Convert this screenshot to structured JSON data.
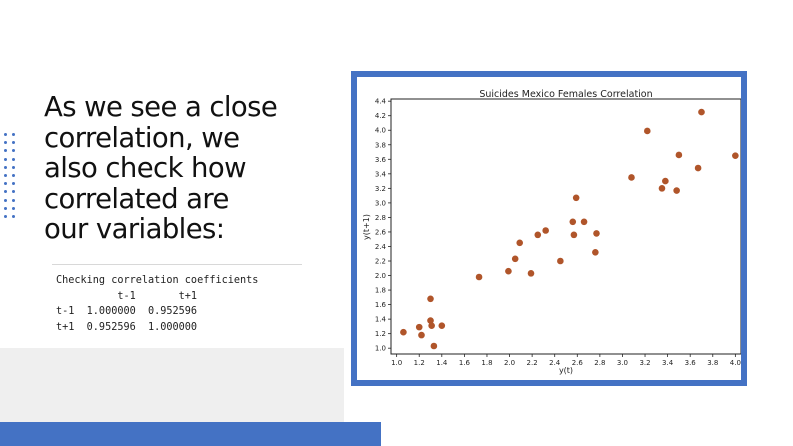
{
  "text": {
    "heading_lines": [
      "As we see a close",
      "correlation, we",
      "also check how",
      "correlated are",
      "our variables:"
    ],
    "code_lines": [
      "Checking correlation coefficients",
      "          t-1       t+1",
      "t-1  1.000000  0.952596",
      "t+1  0.952596  1.000000"
    ]
  },
  "colors": {
    "accent": "#4472c4",
    "marker": "#b0552a",
    "gray_panel": "#efefef"
  },
  "chart_data": {
    "type": "scatter",
    "title": "Suicides Mexico Females Correlation",
    "xlabel": "y(t)",
    "ylabel": "y(t+1)",
    "xlim": [
      0.95,
      4.05
    ],
    "ylim": [
      0.92,
      4.43
    ],
    "xticks": [
      "1.0",
      "1.2",
      "1.4",
      "1.6",
      "1.8",
      "2.0",
      "2.2",
      "2.4",
      "2.6",
      "2.8",
      "3.0",
      "3.2",
      "3.4",
      "3.6",
      "3.8",
      "4.0"
    ],
    "xtick_values": [
      1.0,
      1.2,
      1.4,
      1.6,
      1.8,
      2.0,
      2.2,
      2.4,
      2.6,
      2.8,
      3.0,
      3.2,
      3.4,
      3.6,
      3.8,
      4.0
    ],
    "yticks": [
      "1.0",
      "1.2",
      "1.4",
      "1.6",
      "1.8",
      "2.0",
      "2.2",
      "2.4",
      "2.6",
      "2.8",
      "3.0",
      "3.2",
      "3.4",
      "3.6",
      "3.8",
      "4.0",
      "4.2",
      "4.4"
    ],
    "ytick_values": [
      1.0,
      1.2,
      1.4,
      1.6,
      1.8,
      2.0,
      2.2,
      2.4,
      2.6,
      2.8,
      3.0,
      3.2,
      3.4,
      3.6,
      3.8,
      4.0,
      4.2,
      4.4
    ],
    "grid": false,
    "legend": false,
    "points": [
      {
        "x": 1.06,
        "y": 1.22
      },
      {
        "x": 1.2,
        "y": 1.29
      },
      {
        "x": 1.22,
        "y": 1.18
      },
      {
        "x": 1.3,
        "y": 1.68
      },
      {
        "x": 1.3,
        "y": 1.38
      },
      {
        "x": 1.31,
        "y": 1.31
      },
      {
        "x": 1.33,
        "y": 1.03
      },
      {
        "x": 1.4,
        "y": 1.31
      },
      {
        "x": 1.73,
        "y": 1.98
      },
      {
        "x": 1.99,
        "y": 2.06
      },
      {
        "x": 2.05,
        "y": 2.23
      },
      {
        "x": 2.09,
        "y": 2.45
      },
      {
        "x": 2.19,
        "y": 2.03
      },
      {
        "x": 2.25,
        "y": 2.56
      },
      {
        "x": 2.32,
        "y": 2.62
      },
      {
        "x": 2.45,
        "y": 2.2
      },
      {
        "x": 2.56,
        "y": 2.74
      },
      {
        "x": 2.57,
        "y": 2.56
      },
      {
        "x": 2.59,
        "y": 3.07
      },
      {
        "x": 2.66,
        "y": 2.74
      },
      {
        "x": 2.76,
        "y": 2.32
      },
      {
        "x": 2.77,
        "y": 2.58
      },
      {
        "x": 3.08,
        "y": 3.35
      },
      {
        "x": 3.22,
        "y": 3.99
      },
      {
        "x": 3.35,
        "y": 3.2
      },
      {
        "x": 3.38,
        "y": 3.3
      },
      {
        "x": 3.48,
        "y": 3.17
      },
      {
        "x": 3.5,
        "y": 3.66
      },
      {
        "x": 3.67,
        "y": 3.48
      },
      {
        "x": 3.7,
        "y": 4.25
      },
      {
        "x": 4.0,
        "y": 3.65
      }
    ]
  }
}
